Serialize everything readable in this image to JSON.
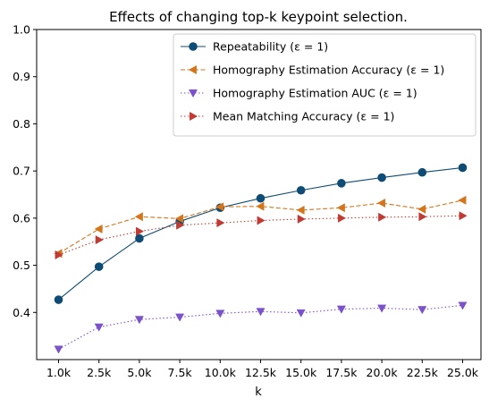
{
  "chart_data": {
    "type": "line",
    "title": "Effects of changing top-k keypoint selection.",
    "xlabel": "k",
    "ylabel": "",
    "categories": [
      "1.0k",
      "2.5k",
      "5.0k",
      "7.5k",
      "10.0k",
      "12.5k",
      "15.0k",
      "17.5k",
      "20.0k",
      "22.5k",
      "25.0k"
    ],
    "ylim": [
      0.3,
      1.0
    ],
    "yticks": [
      "0.4",
      "0.5",
      "0.6",
      "0.7",
      "0.8",
      "0.9",
      "1.0"
    ],
    "grid": false,
    "legend_position": "top-right",
    "series": [
      {
        "name": "Repeatability (ε = 1)",
        "values": [
          0.427,
          0.497,
          0.557,
          0.593,
          0.622,
          0.642,
          0.659,
          0.674,
          0.686,
          0.697,
          0.707
        ],
        "color": "#0f4c75",
        "marker": "circle",
        "line_style": "solid"
      },
      {
        "name": "Homography Estimation Accuracy (ε = 1)",
        "values": [
          0.525,
          0.577,
          0.603,
          0.599,
          0.624,
          0.625,
          0.617,
          0.622,
          0.632,
          0.619,
          0.638
        ],
        "color": "#d4751c",
        "marker": "triangle-left",
        "line_style": "dashed"
      },
      {
        "name": "Homography Estimation AUC (ε = 1)",
        "values": [
          0.322,
          0.369,
          0.385,
          0.39,
          0.398,
          0.402,
          0.399,
          0.407,
          0.409,
          0.406,
          0.415
        ],
        "color": "#7b52c9",
        "marker": "triangle-down",
        "line_style": "dotted"
      },
      {
        "name": "Mean Matching Accuracy (ε = 1)",
        "values": [
          0.522,
          0.554,
          0.572,
          0.585,
          0.59,
          0.595,
          0.598,
          0.6,
          0.602,
          0.603,
          0.605
        ],
        "color": "#c03b33",
        "marker": "triangle-right",
        "line_style": "dotted"
      }
    ]
  }
}
